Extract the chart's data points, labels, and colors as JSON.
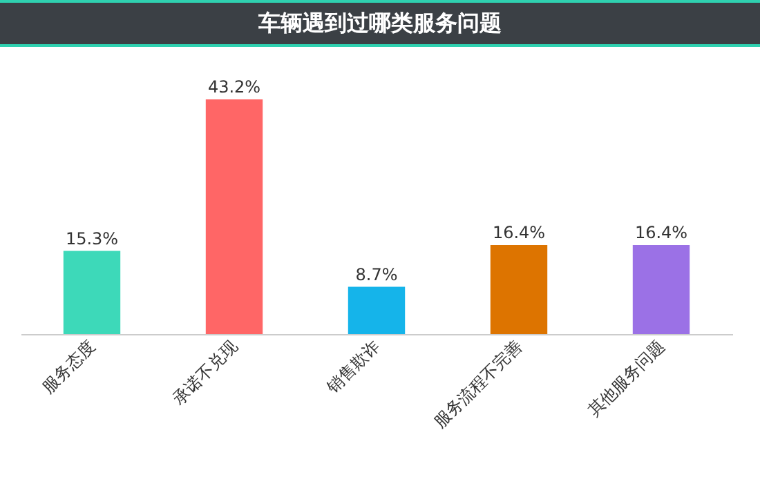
{
  "chart_data": {
    "type": "bar",
    "title": "车辆遇到过哪类服务问题",
    "categories": [
      "服务态度",
      "承诺不兑现",
      "销售欺诈",
      "服务流程不完善",
      "其他服务问题"
    ],
    "values": [
      15.3,
      43.2,
      8.7,
      16.4,
      16.4
    ],
    "colors": [
      "#3dd9b9",
      "#ff6666",
      "#15b4ea",
      "#dd7400",
      "#9b71e6"
    ],
    "value_labels": [
      "15.3%",
      "43.2%",
      "8.7%",
      "16.4%",
      "16.4%"
    ]
  }
}
